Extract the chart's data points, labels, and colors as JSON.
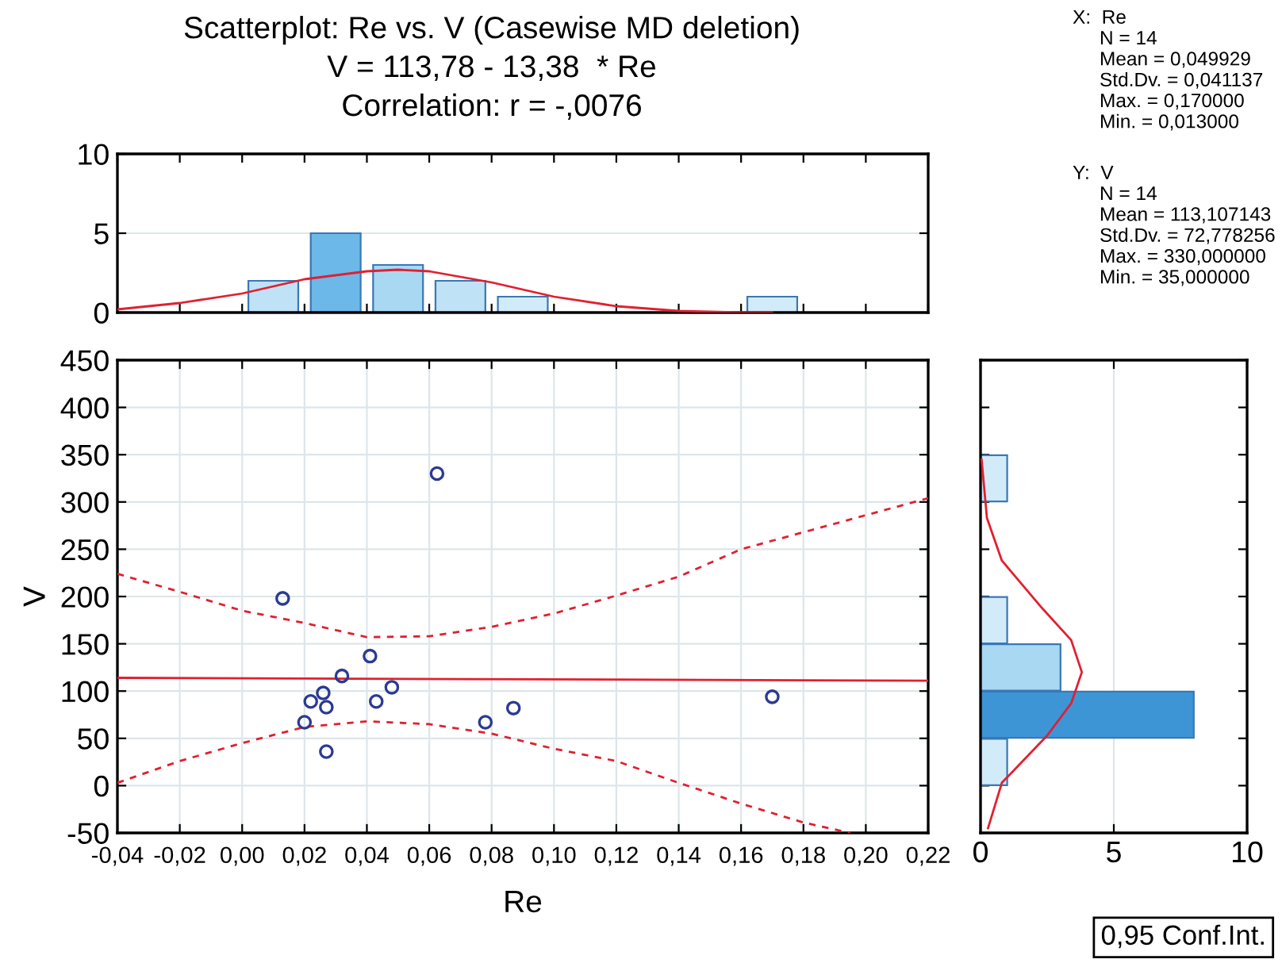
{
  "chart_data": [
    {
      "type": "histogram",
      "title": "Scatterplot: Re vs. V (Casewise MD deletion)\nV = 113,78 - 13,38  * Re\nCorrelation: r = -,0076",
      "bins": [
        0.0,
        0.02,
        0.04,
        0.06,
        0.08,
        0.1,
        0.12,
        0.14,
        0.16,
        0.18
      ],
      "values": [
        2,
        5,
        3,
        2,
        1,
        0,
        0,
        0,
        1
      ],
      "colors": [
        "#bfe2f6",
        "#6cb8e8",
        "#a9d8f3",
        "#bfe2f6",
        "#d2ebf9",
        "#d2ebf9",
        "#d2ebf9",
        "#d2ebf9",
        "#d2ebf9"
      ],
      "series": [
        {
          "type": "line",
          "color": "#e02030",
          "x": [
            -0.04,
            -0.02,
            0.0,
            0.02,
            0.04,
            0.05,
            0.06,
            0.08,
            0.1,
            0.12,
            0.14,
            0.16,
            0.17
          ],
          "values": [
            0.2,
            0.6,
            1.2,
            2.1,
            2.6,
            2.7,
            2.6,
            1.9,
            1.0,
            0.4,
            0.1,
            0.0,
            0.0
          ]
        }
      ],
      "xlim": [
        -0.04,
        0.22
      ],
      "ylim": [
        0,
        10
      ],
      "yticks": [
        0,
        5,
        10
      ],
      "grid": "y",
      "tick_labels": "y",
      "annotations": [
        "X:  Re\n     N = 14\n     Mean = 0,049929\n     Std.Dv. = 0,041137\n     Max. = 0,170000\n     Min. = 0,013000",
        "Y:  V\n     N = 14\n     Mean = 113,107143\n     Std.Dv. = 72,778256\n     Max. = 330,000000\n     Min. = 35,000000"
      ]
    },
    {
      "type": "scatter",
      "xlabel": "Re",
      "ylabel": "V",
      "series": [
        {
          "type": "scatter",
          "marker": "circle",
          "color": "#2b3a92",
          "x": [
            0.013,
            0.0625,
            0.041,
            0.032,
            0.026,
            0.022,
            0.027,
            0.02,
            0.027,
            0.048,
            0.043,
            0.078,
            0.087,
            0.17
          ],
          "values": [
            198,
            330,
            137,
            116,
            98,
            89,
            83,
            67,
            36,
            104,
            89,
            67,
            82,
            94
          ]
        },
        {
          "type": "line",
          "color": "#e02030",
          "line_style": "solid",
          "x": [
            -0.04,
            0.22
          ],
          "values": [
            114,
            111
          ]
        },
        {
          "type": "line",
          "color": "#e02030",
          "line_style": "dashed",
          "x": [
            -0.04,
            -0.02,
            0.0,
            0.02,
            0.04,
            0.06,
            0.08,
            0.1,
            0.12,
            0.14,
            0.16,
            0.18,
            0.22
          ],
          "values": [
            224,
            205,
            185,
            172,
            157,
            158,
            168,
            182,
            201,
            221,
            250,
            268,
            304
          ]
        },
        {
          "type": "line",
          "color": "#e02030",
          "line_style": "dashed",
          "x": [
            -0.04,
            -0.02,
            0.0,
            0.02,
            0.04,
            0.06,
            0.08,
            0.1,
            0.12,
            0.14,
            0.16,
            0.18,
            0.195
          ],
          "values": [
            3,
            26,
            45,
            62,
            68,
            65,
            55,
            39,
            26,
            3,
            -19,
            -39,
            -50
          ]
        }
      ],
      "xlim": [
        -0.04,
        0.22
      ],
      "ylim": [
        -50,
        450
      ],
      "xticks": [
        {
          "value": -0.04,
          "label": "-0,04"
        },
        {
          "value": -0.02,
          "label": "-0,02"
        },
        {
          "value": 0.0,
          "label": "0,00"
        },
        {
          "value": 0.02,
          "label": "0,02"
        },
        {
          "value": 0.04,
          "label": "0,04"
        },
        {
          "value": 0.06,
          "label": "0,06"
        },
        {
          "value": 0.08,
          "label": "0,08"
        },
        {
          "value": 0.1,
          "label": "0,10"
        },
        {
          "value": 0.12,
          "label": "0,12"
        },
        {
          "value": 0.14,
          "label": "0,14"
        },
        {
          "value": 0.16,
          "label": "0,16"
        },
        {
          "value": 0.18,
          "label": "0,18"
        },
        {
          "value": 0.2,
          "label": "0,20"
        },
        {
          "value": 0.22,
          "label": "0,22"
        }
      ],
      "yticks": [
        -50,
        0,
        50,
        100,
        150,
        200,
        250,
        300,
        350,
        400,
        450
      ],
      "grid": true,
      "annotations": [
        "0,95 Conf.Int."
      ]
    },
    {
      "type": "histogram",
      "orientation": "horizontal",
      "bins": [
        -50,
        0,
        50,
        100,
        150,
        200,
        250,
        300,
        350,
        400,
        450
      ],
      "values": [
        0,
        1,
        8,
        3,
        1,
        0,
        0,
        1,
        0,
        0
      ],
      "colors": [
        "#d2ebf9",
        "#d2ebf9",
        "#3d95d6",
        "#a9d8f3",
        "#d2ebf9",
        "#d2ebf9",
        "#d2ebf9",
        "#d2ebf9",
        "#d2ebf9",
        "#d2ebf9"
      ],
      "series": [
        {
          "type": "line",
          "color": "#e02030",
          "x": [
            -45,
            3,
            53,
            87,
            120,
            154,
            188,
            238,
            283,
            345
          ],
          "values": [
            0.28,
            0.8,
            2.5,
            3.4,
            3.8,
            3.4,
            2.3,
            0.8,
            0.24,
            0.04
          ]
        }
      ],
      "xlim": [
        0,
        10
      ],
      "xticks": [
        0,
        5,
        10
      ],
      "ylim": [
        -50,
        450
      ],
      "grid": "x",
      "tick_labels": "x"
    }
  ]
}
